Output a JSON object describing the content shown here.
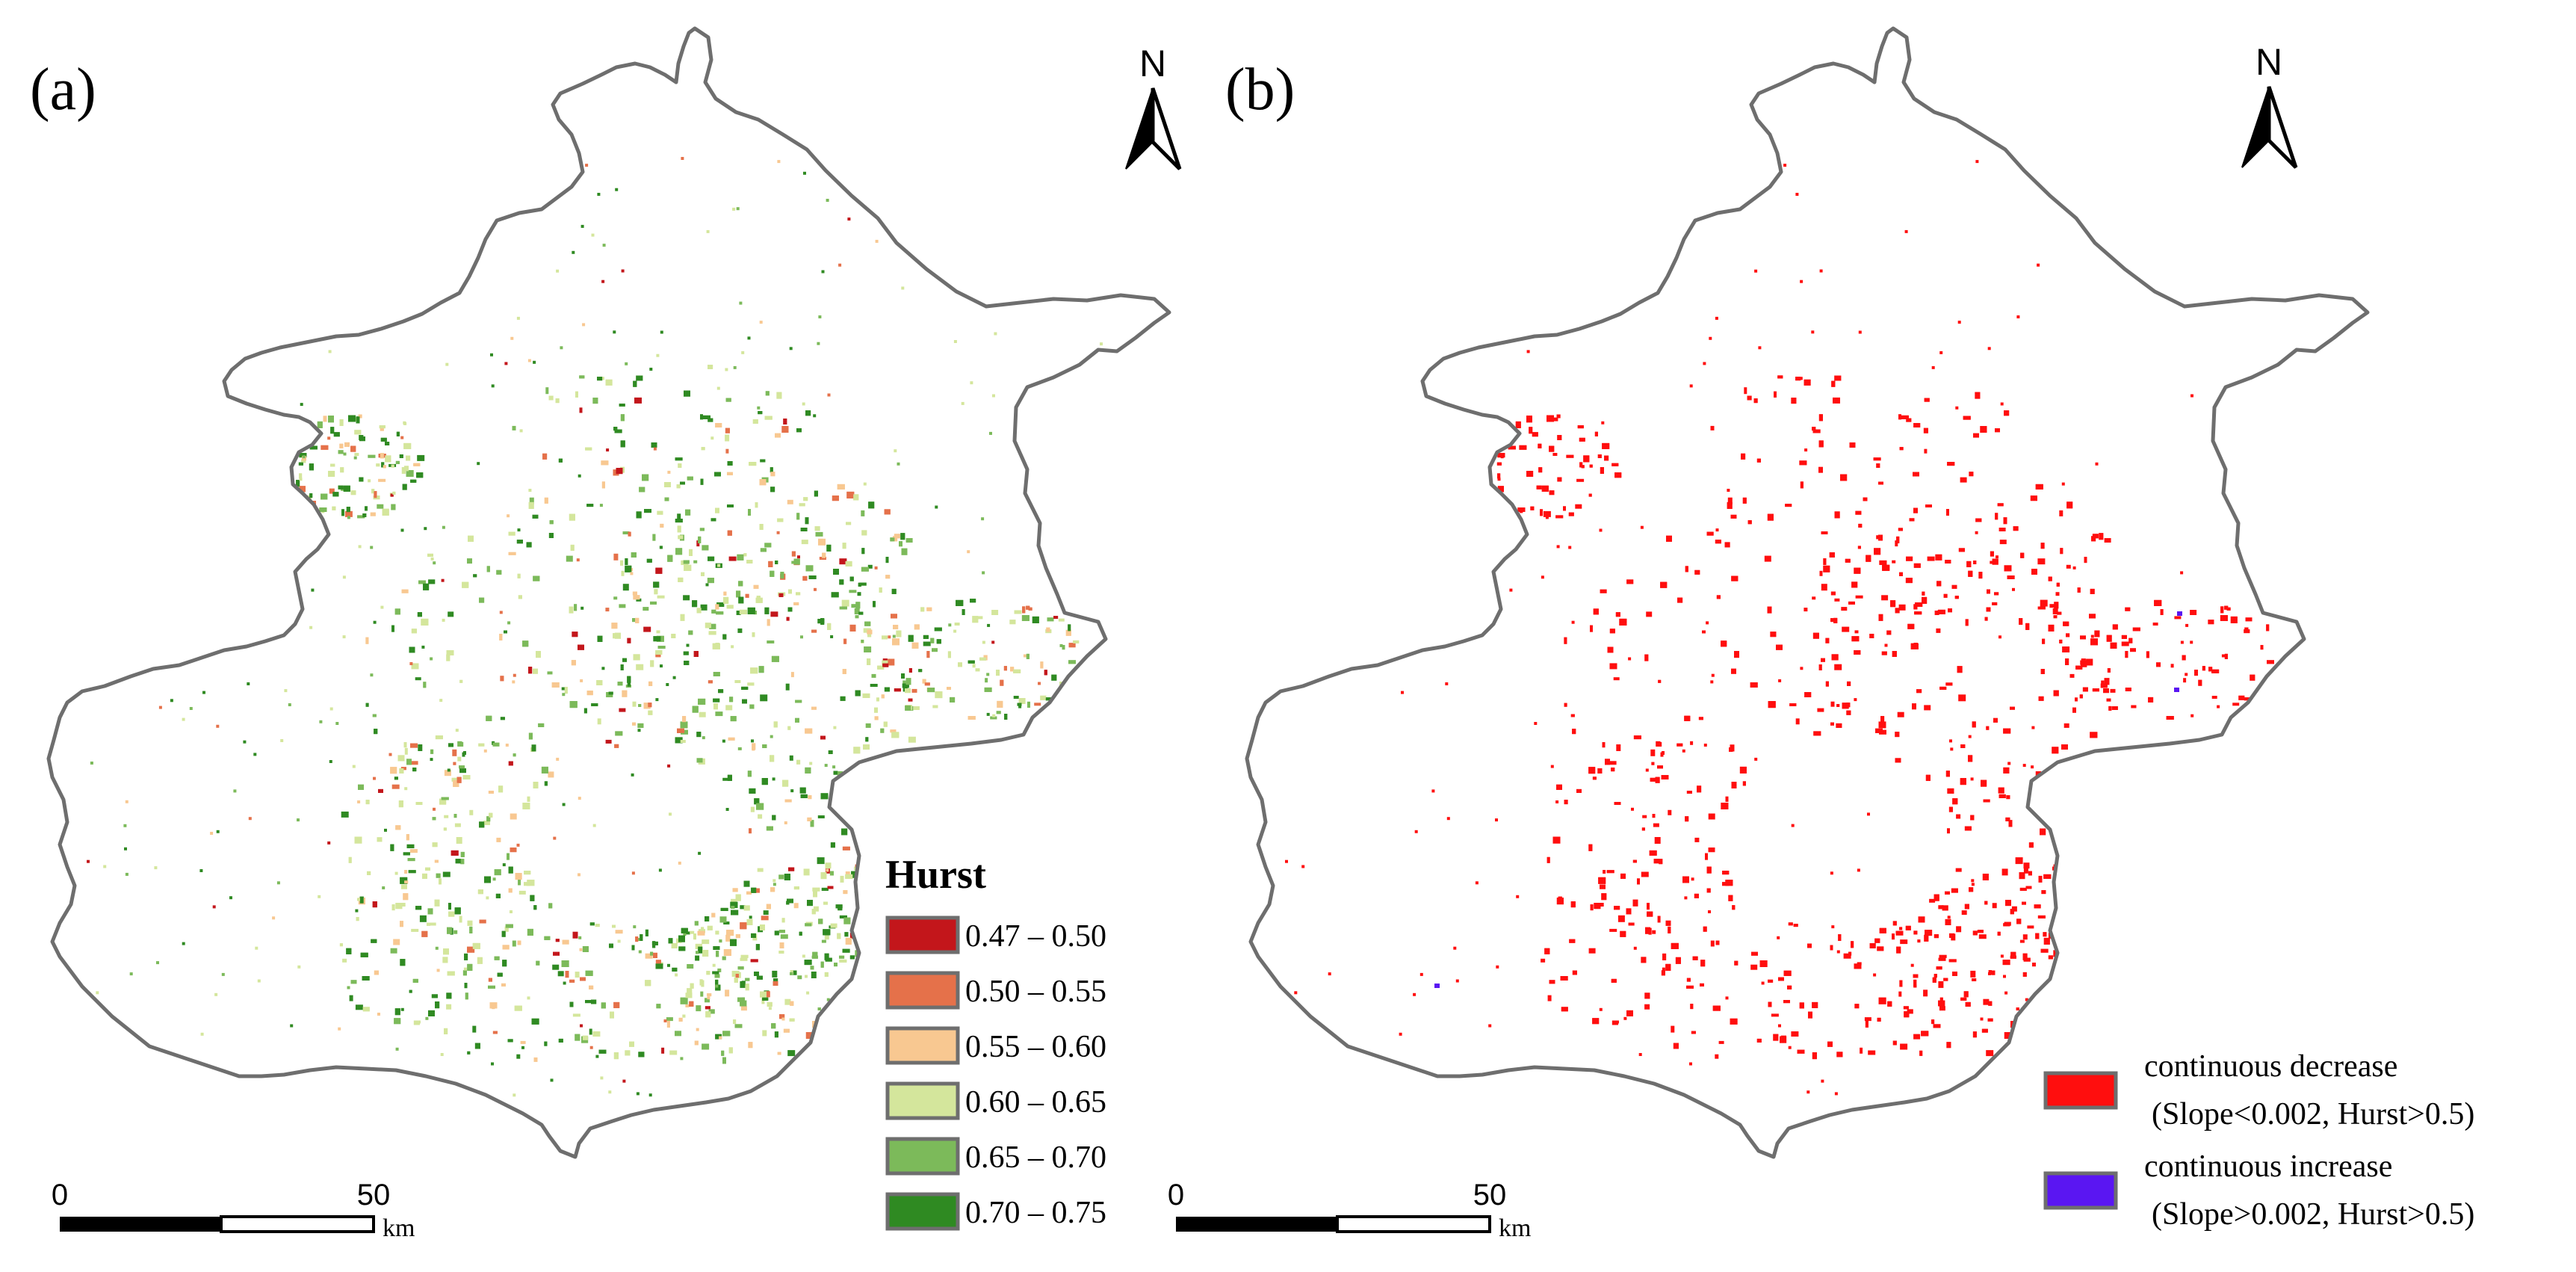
{
  "panels": [
    {
      "label": "(a)",
      "north": "N",
      "legend": {
        "title": "Hurst",
        "classes": [
          {
            "label": "0.47 – 0.50",
            "color": "#c3161b"
          },
          {
            "label": "0.50 – 0.55",
            "color": "#e5714a"
          },
          {
            "label": "0.55 – 0.60",
            "color": "#f8c891"
          },
          {
            "label": "0.60 – 0.65",
            "color": "#d4e69c"
          },
          {
            "label": "0.65 – 0.70",
            "color": "#7cba5a"
          },
          {
            "label": "0.70 – 0.75",
            "color": "#2f8a22"
          }
        ]
      },
      "scale": {
        "zero": "0",
        "fifty": "50",
        "unit": "km"
      }
    },
    {
      "label": "(b)",
      "north": "N",
      "legend": {
        "title": "",
        "classes": [
          {
            "label": "continuous decrease",
            "sublabel": "(Slope<0.002, Hurst>0.5)",
            "color": "#ff0e0e"
          },
          {
            "label": "continuous increase",
            "sublabel": "(Slope>0.002, Hurst>0.5)",
            "color": "#5a16f2"
          }
        ]
      },
      "scale": {
        "zero": "0",
        "fifty": "50",
        "unit": "km"
      }
    }
  ],
  "colors": {
    "boundary": "#6e6e6e"
  }
}
